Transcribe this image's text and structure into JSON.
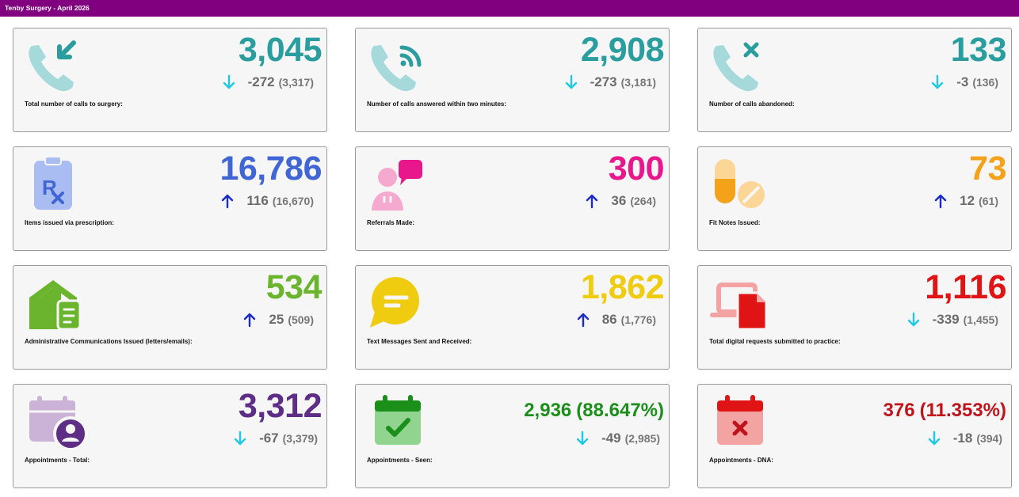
{
  "header": {
    "title": "Tenby Surgery - April 2026"
  },
  "colors": {
    "header": "#800080",
    "arrow_down": "#1ec8e6",
    "arrow_up": "#1a2bc8"
  },
  "cards": [
    {
      "label": "Total number of calls to surgery:",
      "value": "3,045",
      "delta": "-272",
      "prev": "(3,317)",
      "direction": "down",
      "color": "#2a9d9f",
      "icon": "phone-incoming-icon"
    },
    {
      "label": "Number of calls answered within two minutes:",
      "value": "2,908",
      "delta": "-273",
      "prev": "(3,181)",
      "direction": "down",
      "color": "#2a9d9f",
      "icon": "phone-answered-icon"
    },
    {
      "label": "Number of calls abandoned:",
      "value": "133",
      "delta": "-3",
      "prev": "(136)",
      "direction": "down",
      "color": "#2a9d9f",
      "icon": "phone-missed-icon"
    },
    {
      "label": "Items issued via prescription:",
      "value": "16,786",
      "delta": "116",
      "prev": "(16,670)",
      "direction": "up",
      "color": "#3f66d4",
      "icon": "prescription-icon"
    },
    {
      "label": "Referrals Made:",
      "value": "300",
      "delta": "36",
      "prev": "(264)",
      "direction": "up",
      "color": "#e8188c",
      "icon": "referral-icon"
    },
    {
      "label": "Fit Notes Issued:",
      "value": "73",
      "delta": "12",
      "prev": "(61)",
      "direction": "up",
      "color": "#f5a21b",
      "icon": "pill-icon"
    },
    {
      "label": "Administrative Communications Issued (letters/emails):",
      "value": "534",
      "delta": "25",
      "prev": "(509)",
      "direction": "up",
      "color": "#6bb52e",
      "icon": "house-letter-icon"
    },
    {
      "label": "Text Messages Sent and Received:",
      "value": "1,862",
      "delta": "86",
      "prev": "(1,776)",
      "direction": "up",
      "color": "#f0cc10",
      "icon": "chat-bubble-icon"
    },
    {
      "label": "Total digital requests submitted to practice:",
      "value": "1,116",
      "delta": "-339",
      "prev": "(1,455)",
      "direction": "down",
      "color": "#e01414",
      "icon": "digital-request-icon"
    },
    {
      "label": "Appointments - Total:",
      "value": "3,312",
      "pct": "",
      "delta": "-67",
      "prev": "(3,379)",
      "direction": "down",
      "color": "#5e2d86",
      "icon": "calendar-person-icon"
    },
    {
      "label": "Appointments - Seen:",
      "value": "2,936",
      "pct": "(88.647%)",
      "delta": "-49",
      "prev": "(2,985)",
      "direction": "down",
      "color": "#1a8f1a",
      "icon": "calendar-check-icon"
    },
    {
      "label": "Appointments - DNA:",
      "value": "376",
      "pct": "(11.353%)",
      "delta": "-18",
      "prev": "(394)",
      "direction": "down",
      "color": "#c0141c",
      "icon": "calendar-cross-icon"
    }
  ]
}
